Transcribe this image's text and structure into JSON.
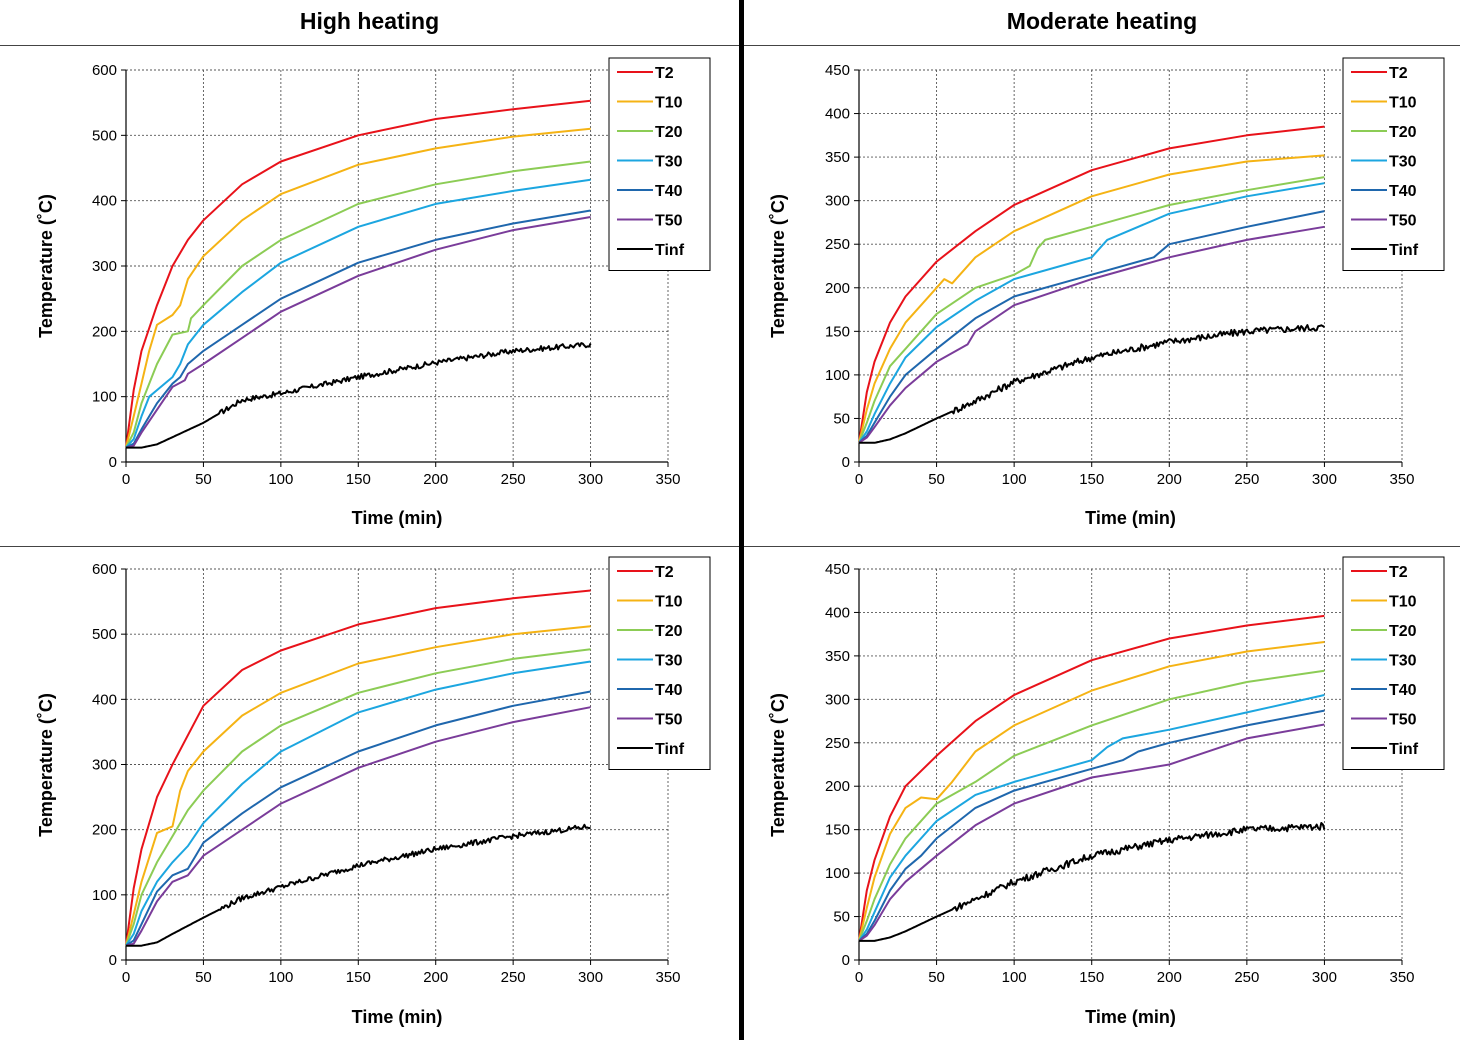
{
  "column_titles": [
    "High heating",
    "Moderate heating"
  ],
  "colors": {
    "T2": "#e8121a",
    "T10": "#f5b314",
    "T20": "#8ccc55",
    "T30": "#1ca6e0",
    "T40": "#1f67ad",
    "T50": "#7a3c9a",
    "Tinf": "#000000"
  },
  "chart_data": [
    {
      "type": "line",
      "panel": "top-left",
      "xlabel": "Time (min)",
      "ylabel": "Temperature (˚C)",
      "xlim": [
        0,
        350
      ],
      "ylim": [
        0,
        600
      ],
      "xticks": [
        0,
        50,
        100,
        150,
        200,
        250,
        300,
        350
      ],
      "yticks": [
        0,
        100,
        200,
        300,
        400,
        500,
        600
      ],
      "grid": true,
      "legend": "top-right",
      "series": [
        {
          "name": "T2",
          "x": [
            0,
            5,
            10,
            20,
            30,
            40,
            50,
            75,
            100,
            150,
            200,
            250,
            300
          ],
          "y": [
            22,
            110,
            170,
            240,
            300,
            340,
            370,
            425,
            460,
            500,
            525,
            540,
            553
          ]
        },
        {
          "name": "T10",
          "x": [
            0,
            5,
            10,
            15,
            20,
            30,
            35,
            40,
            50,
            75,
            100,
            150,
            200,
            250,
            300
          ],
          "y": [
            22,
            70,
            120,
            170,
            210,
            225,
            240,
            280,
            315,
            370,
            410,
            455,
            480,
            498,
            510
          ]
        },
        {
          "name": "T20",
          "x": [
            0,
            5,
            10,
            20,
            30,
            40,
            42,
            50,
            75,
            100,
            150,
            200,
            250,
            300
          ],
          "y": [
            22,
            45,
            90,
            150,
            195,
            200,
            220,
            240,
            300,
            340,
            395,
            425,
            445,
            460
          ]
        },
        {
          "name": "T30",
          "x": [
            0,
            5,
            10,
            15,
            20,
            30,
            35,
            40,
            50,
            75,
            100,
            150,
            200,
            250,
            300
          ],
          "y": [
            22,
            35,
            70,
            100,
            110,
            130,
            150,
            180,
            210,
            260,
            305,
            360,
            395,
            415,
            432
          ]
        },
        {
          "name": "T40",
          "x": [
            0,
            5,
            10,
            20,
            30,
            35,
            40,
            50,
            75,
            100,
            150,
            200,
            250,
            300
          ],
          "y": [
            22,
            28,
            50,
            90,
            120,
            130,
            150,
            170,
            210,
            250,
            305,
            340,
            365,
            385
          ]
        },
        {
          "name": "T50",
          "x": [
            0,
            5,
            10,
            20,
            30,
            38,
            40,
            50,
            75,
            100,
            150,
            200,
            250,
            300
          ],
          "y": [
            22,
            25,
            45,
            80,
            115,
            125,
            135,
            150,
            190,
            230,
            285,
            325,
            355,
            375
          ]
        },
        {
          "name": "Tinf",
          "x": [
            0,
            10,
            20,
            30,
            50,
            75,
            100,
            150,
            200,
            250,
            300
          ],
          "y": [
            22,
            22,
            27,
            38,
            60,
            95,
            105,
            130,
            152,
            170,
            180
          ]
        }
      ]
    },
    {
      "type": "line",
      "panel": "top-right",
      "xlabel": "Time (min)",
      "ylabel": "Temperature (˚C)",
      "xlim": [
        0,
        350
      ],
      "ylim": [
        0,
        450
      ],
      "xticks": [
        0,
        50,
        100,
        150,
        200,
        250,
        300,
        350
      ],
      "yticks": [
        0,
        50,
        100,
        150,
        200,
        250,
        300,
        350,
        400,
        450
      ],
      "grid": true,
      "legend": "top-right",
      "series": [
        {
          "name": "T2",
          "x": [
            0,
            5,
            10,
            20,
            30,
            50,
            75,
            100,
            150,
            200,
            250,
            300
          ],
          "y": [
            22,
            80,
            115,
            160,
            190,
            230,
            265,
            295,
            335,
            360,
            375,
            385
          ]
        },
        {
          "name": "T10",
          "x": [
            0,
            5,
            10,
            20,
            30,
            50,
            55,
            60,
            75,
            100,
            150,
            200,
            250,
            300
          ],
          "y": [
            22,
            60,
            90,
            130,
            160,
            200,
            210,
            205,
            235,
            265,
            305,
            330,
            345,
            352
          ]
        },
        {
          "name": "T20",
          "x": [
            0,
            5,
            10,
            20,
            30,
            50,
            75,
            100,
            110,
            115,
            120,
            150,
            200,
            250,
            300
          ],
          "y": [
            22,
            45,
            70,
            110,
            130,
            170,
            200,
            215,
            225,
            245,
            255,
            270,
            295,
            312,
            327
          ]
        },
        {
          "name": "T30",
          "x": [
            0,
            5,
            10,
            20,
            30,
            50,
            75,
            100,
            140,
            150,
            160,
            200,
            250,
            300
          ],
          "y": [
            22,
            35,
            55,
            90,
            120,
            155,
            185,
            210,
            230,
            235,
            255,
            285,
            305,
            320
          ]
        },
        {
          "name": "T40",
          "x": [
            0,
            5,
            10,
            20,
            30,
            50,
            75,
            100,
            150,
            190,
            200,
            250,
            300
          ],
          "y": [
            22,
            30,
            45,
            75,
            100,
            130,
            165,
            190,
            215,
            235,
            250,
            270,
            288
          ]
        },
        {
          "name": "T50",
          "x": [
            0,
            5,
            10,
            20,
            30,
            50,
            70,
            75,
            100,
            150,
            200,
            250,
            300
          ],
          "y": [
            22,
            28,
            40,
            65,
            85,
            115,
            135,
            150,
            180,
            210,
            235,
            255,
            270
          ]
        },
        {
          "name": "Tinf",
          "x": [
            0,
            10,
            20,
            30,
            50,
            75,
            100,
            150,
            200,
            250,
            300
          ],
          "y": [
            22,
            22,
            26,
            33,
            50,
            70,
            92,
            120,
            138,
            150,
            155
          ]
        }
      ]
    },
    {
      "type": "line",
      "panel": "bottom-left",
      "xlabel": "Time (min)",
      "ylabel": "Temperature (˚C)",
      "xlim": [
        0,
        350
      ],
      "ylim": [
        0,
        600
      ],
      "xticks": [
        0,
        50,
        100,
        150,
        200,
        250,
        300,
        350
      ],
      "yticks": [
        0,
        100,
        200,
        300,
        400,
        500,
        600
      ],
      "grid": true,
      "legend": "top-right",
      "series": [
        {
          "name": "T2",
          "x": [
            0,
            5,
            10,
            20,
            30,
            40,
            50,
            75,
            100,
            150,
            200,
            250,
            300
          ],
          "y": [
            22,
            110,
            170,
            250,
            300,
            345,
            390,
            445,
            475,
            515,
            540,
            555,
            567
          ]
        },
        {
          "name": "T10",
          "x": [
            0,
            5,
            10,
            20,
            25,
            30,
            35,
            40,
            50,
            75,
            100,
            150,
            200,
            250,
            300
          ],
          "y": [
            22,
            70,
            120,
            195,
            200,
            205,
            260,
            290,
            320,
            375,
            410,
            455,
            480,
            500,
            512
          ]
        },
        {
          "name": "T20",
          "x": [
            0,
            5,
            10,
            20,
            30,
            40,
            50,
            75,
            100,
            150,
            200,
            250,
            300
          ],
          "y": [
            22,
            55,
            100,
            150,
            190,
            230,
            260,
            320,
            360,
            410,
            440,
            462,
            477
          ]
        },
        {
          "name": "T30",
          "x": [
            0,
            5,
            10,
            20,
            30,
            40,
            50,
            75,
            100,
            150,
            200,
            250,
            300
          ],
          "y": [
            22,
            40,
            75,
            120,
            150,
            175,
            210,
            270,
            320,
            380,
            415,
            440,
            458
          ]
        },
        {
          "name": "T40",
          "x": [
            0,
            5,
            10,
            20,
            30,
            40,
            45,
            50,
            75,
            100,
            150,
            200,
            250,
            300
          ],
          "y": [
            22,
            30,
            55,
            105,
            130,
            140,
            160,
            180,
            225,
            265,
            320,
            360,
            390,
            412
          ]
        },
        {
          "name": "T50",
          "x": [
            0,
            5,
            10,
            20,
            30,
            40,
            50,
            75,
            100,
            150,
            200,
            250,
            300
          ],
          "y": [
            22,
            25,
            45,
            90,
            120,
            130,
            160,
            200,
            240,
            295,
            335,
            365,
            388
          ]
        },
        {
          "name": "Tinf",
          "x": [
            0,
            10,
            20,
            30,
            50,
            75,
            100,
            150,
            200,
            250,
            300
          ],
          "y": [
            22,
            22,
            27,
            40,
            65,
            95,
            112,
            145,
            170,
            190,
            205
          ]
        }
      ]
    },
    {
      "type": "line",
      "panel": "bottom-right",
      "xlabel": "Time (min)",
      "ylabel": "Temperature (˚C)",
      "xlim": [
        0,
        350
      ],
      "ylim": [
        0,
        450
      ],
      "xticks": [
        0,
        50,
        100,
        150,
        200,
        250,
        300,
        350
      ],
      "yticks": [
        0,
        50,
        100,
        150,
        200,
        250,
        300,
        350,
        400,
        450
      ],
      "grid": true,
      "legend": "top-right",
      "series": [
        {
          "name": "T2",
          "x": [
            0,
            5,
            10,
            20,
            30,
            50,
            75,
            100,
            150,
            200,
            250,
            300
          ],
          "y": [
            22,
            80,
            115,
            165,
            200,
            235,
            275,
            305,
            345,
            370,
            385,
            396
          ]
        },
        {
          "name": "T10",
          "x": [
            0,
            5,
            10,
            20,
            30,
            40,
            50,
            60,
            75,
            100,
            150,
            200,
            250,
            300
          ],
          "y": [
            22,
            60,
            95,
            145,
            175,
            187,
            185,
            205,
            240,
            270,
            310,
            338,
            355,
            366
          ]
        },
        {
          "name": "T20",
          "x": [
            0,
            5,
            10,
            20,
            30,
            50,
            75,
            100,
            150,
            200,
            250,
            300
          ],
          "y": [
            22,
            45,
            70,
            110,
            140,
            180,
            205,
            235,
            270,
            300,
            320,
            333
          ]
        },
        {
          "name": "T30",
          "x": [
            0,
            5,
            10,
            20,
            30,
            50,
            75,
            100,
            150,
            160,
            170,
            200,
            250,
            300
          ],
          "y": [
            22,
            35,
            55,
            95,
            120,
            160,
            190,
            205,
            230,
            245,
            255,
            265,
            285,
            305
          ]
        },
        {
          "name": "T40",
          "x": [
            0,
            5,
            10,
            20,
            30,
            40,
            50,
            75,
            100,
            150,
            170,
            180,
            200,
            250,
            300
          ],
          "y": [
            22,
            30,
            45,
            80,
            105,
            120,
            140,
            175,
            195,
            220,
            230,
            240,
            250,
            270,
            287
          ]
        },
        {
          "name": "T50",
          "x": [
            0,
            5,
            10,
            20,
            30,
            50,
            75,
            100,
            150,
            200,
            250,
            300
          ],
          "y": [
            22,
            28,
            40,
            70,
            90,
            120,
            155,
            180,
            210,
            225,
            255,
            271
          ]
        },
        {
          "name": "Tinf",
          "x": [
            0,
            10,
            20,
            30,
            50,
            75,
            100,
            150,
            200,
            250,
            300
          ],
          "y": [
            22,
            22,
            26,
            33,
            50,
            70,
            90,
            120,
            138,
            150,
            154
          ]
        }
      ]
    }
  ]
}
